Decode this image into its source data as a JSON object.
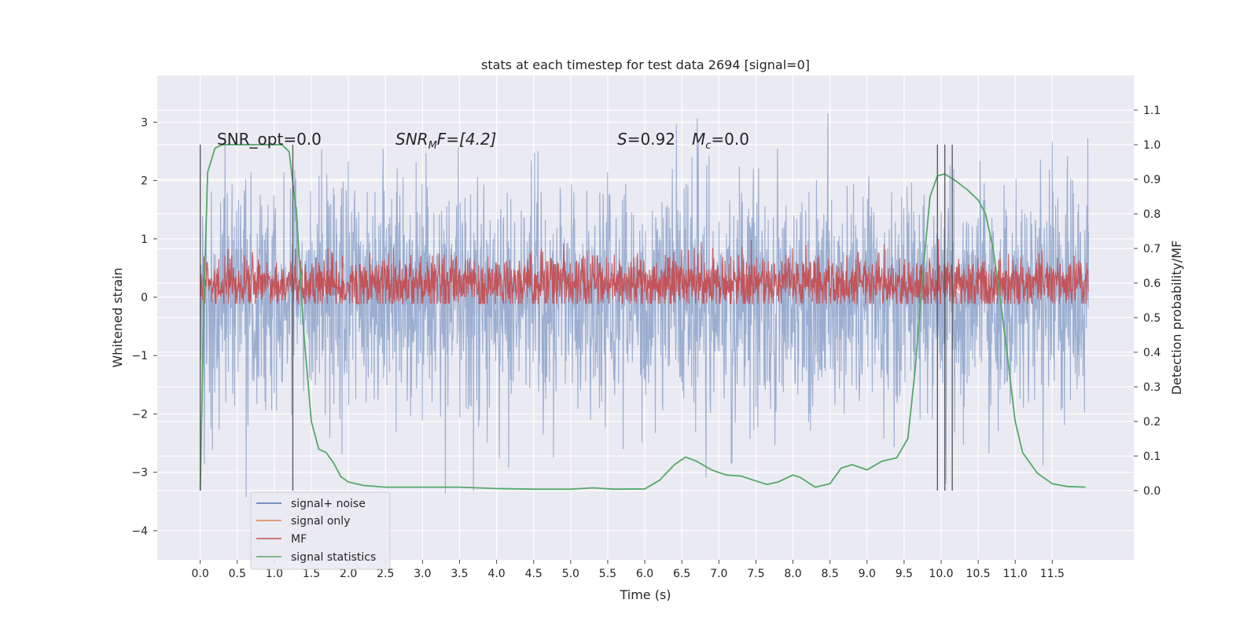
{
  "chart_data": {
    "type": "line",
    "title": "stats at each timestep for test data 2694 [signal=0]",
    "xlabel": "Time (s)",
    "ylabel_left": "Whitened strain",
    "ylabel_right": "Detection probability/MF",
    "xlim": [
      -0.58,
      12.6
    ],
    "ylim_left": [
      -4.5,
      3.8
    ],
    "ylim_right": [
      -0.2,
      1.2
    ],
    "x_ticks": [
      "0.0",
      "0.5",
      "1.0",
      "1.5",
      "2.0",
      "2.5",
      "3.0",
      "3.5",
      "4.0",
      "4.5",
      "5.0",
      "5.5",
      "6.0",
      "6.5",
      "7.0",
      "7.5",
      "8.0",
      "8.5",
      "9.0",
      "9.5",
      "10.0",
      "10.5",
      "11.0",
      "11.5"
    ],
    "y_ticks_left": [
      "3",
      "2",
      "1",
      "0",
      "−1",
      "−2",
      "−3",
      "−4"
    ],
    "y_ticks_right": [
      "1.1",
      "1.0",
      "0.9",
      "0.8",
      "0.7",
      "0.6",
      "0.5",
      "0.4",
      "0.3",
      "0.2",
      "0.1",
      "0.0"
    ],
    "grid": true,
    "legend_position": "lower-left",
    "background_color": "#eaeaf2",
    "annotations": {
      "snr_opt": "SNR_opt=0.0",
      "snr_mf_main": "SNR",
      "snr_mf_sub": "M",
      "snr_mf_rest": "F=[4.2]",
      "s_main": "S",
      "s_rest": "=0.92",
      "mc_main": "M",
      "mc_sub": "c",
      "mc_rest": "=0.0"
    },
    "vertical_lines_x": [
      0.0,
      1.25,
      9.95,
      10.05,
      10.15
    ],
    "series": [
      {
        "name": "signal+ noise",
        "color": "#4c72b0",
        "axis": "left",
        "kind": "noise",
        "center": 0.0,
        "sigma": 1.0,
        "x_range": [
          0.0,
          11.99
        ]
      },
      {
        "name": "signal only",
        "color": "#dd8452",
        "axis": "left",
        "kind": "flat",
        "values": []
      },
      {
        "name": "MF",
        "color": "#c44e52",
        "axis": "right",
        "kind": "noise",
        "center": 0.6,
        "sigma": 0.04,
        "x_range": [
          0.0,
          11.99
        ]
      },
      {
        "name": "signal statistics",
        "color": "#55a868",
        "axis": "right",
        "kind": "line",
        "x": [
          0.0,
          0.05,
          0.1,
          0.2,
          0.3,
          0.5,
          0.8,
          1.0,
          1.1,
          1.2,
          1.3,
          1.4,
          1.5,
          1.6,
          1.7,
          1.8,
          1.9,
          2.0,
          2.2,
          2.5,
          3.0,
          3.5,
          4.0,
          4.5,
          5.0,
          5.3,
          5.6,
          6.0,
          6.2,
          6.4,
          6.55,
          6.7,
          6.9,
          7.1,
          7.3,
          7.5,
          7.65,
          7.8,
          8.0,
          8.1,
          8.3,
          8.5,
          8.65,
          8.8,
          9.0,
          9.2,
          9.4,
          9.55,
          9.65,
          9.75,
          9.85,
          9.95,
          10.05,
          10.2,
          10.35,
          10.5,
          10.6,
          10.7,
          10.8,
          10.9,
          11.0,
          11.1,
          11.3,
          11.5,
          11.7,
          11.95
        ],
        "values": [
          0.0,
          0.55,
          0.92,
          0.99,
          1.0,
          1.0,
          1.0,
          1.0,
          1.0,
          0.98,
          0.8,
          0.45,
          0.2,
          0.12,
          0.11,
          0.08,
          0.04,
          0.025,
          0.015,
          0.01,
          0.01,
          0.01,
          0.006,
          0.004,
          0.004,
          0.008,
          0.004,
          0.005,
          0.03,
          0.075,
          0.097,
          0.085,
          0.06,
          0.045,
          0.042,
          0.028,
          0.018,
          0.025,
          0.045,
          0.038,
          0.01,
          0.02,
          0.065,
          0.075,
          0.06,
          0.085,
          0.095,
          0.15,
          0.35,
          0.62,
          0.85,
          0.91,
          0.915,
          0.895,
          0.87,
          0.84,
          0.8,
          0.7,
          0.55,
          0.38,
          0.2,
          0.11,
          0.05,
          0.02,
          0.012,
          0.01
        ]
      }
    ]
  }
}
